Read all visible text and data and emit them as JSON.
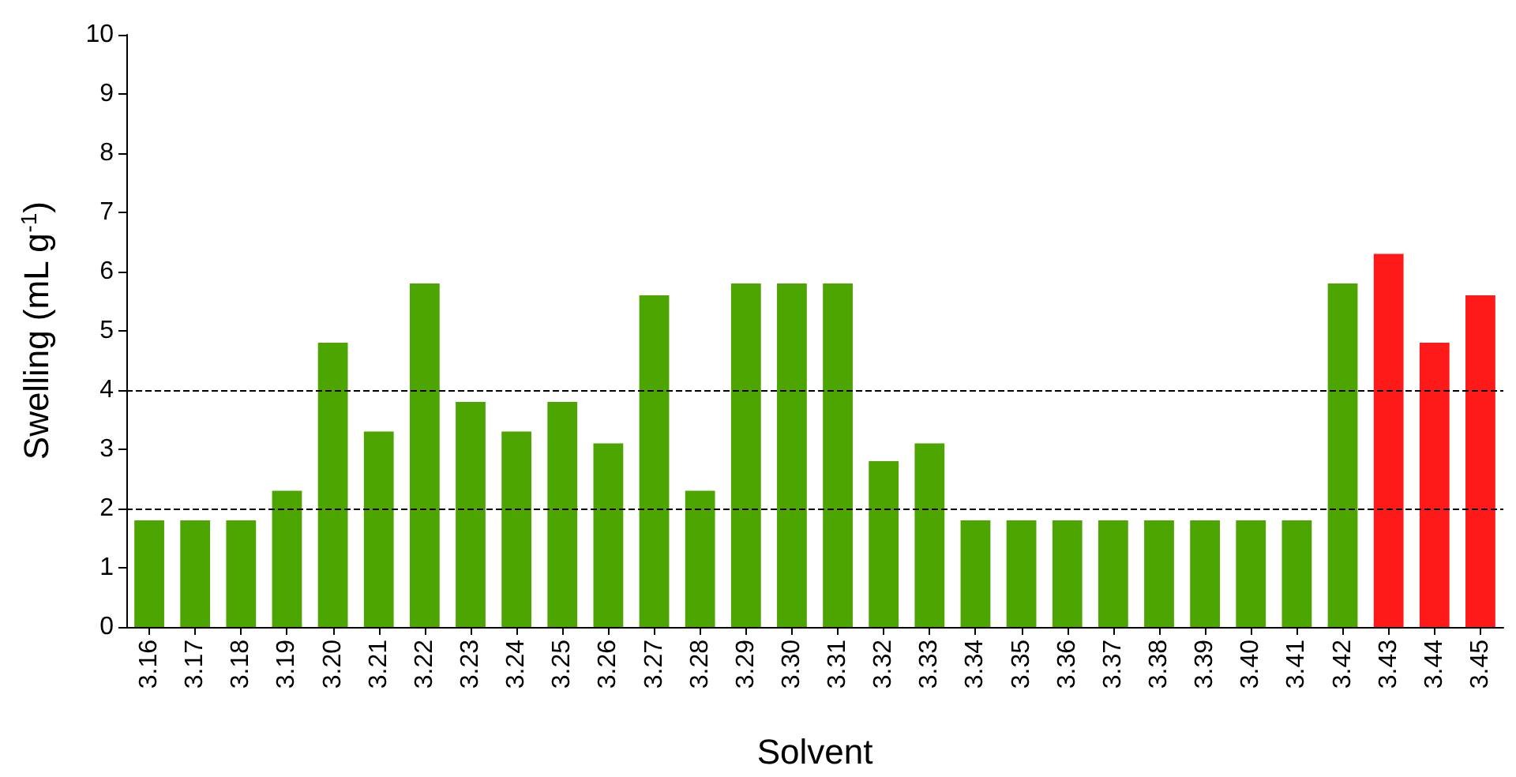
{
  "chart_data": {
    "type": "bar",
    "xlabel": "Solvent",
    "ylabel": "Swelling (mL g$^{-1}$)",
    "categories": [
      "3.16",
      "3.17",
      "3.18",
      "3.19",
      "3.20",
      "3.21",
      "3.22",
      "3.23",
      "3.24",
      "3.25",
      "3.26",
      "3.27",
      "3.28",
      "3.29",
      "3.30",
      "3.31",
      "3.32",
      "3.33",
      "3.34",
      "3.35",
      "3.36",
      "3.37",
      "3.38",
      "3.39",
      "3.40",
      "3.41",
      "3.42",
      "3.43",
      "3.44",
      "3.45"
    ],
    "values": [
      1.8,
      1.8,
      1.8,
      2.3,
      4.8,
      3.3,
      5.8,
      3.8,
      3.3,
      3.8,
      3.1,
      5.6,
      2.3,
      5.8,
      5.8,
      5.8,
      2.8,
      3.1,
      1.8,
      1.8,
      1.8,
      1.8,
      1.8,
      1.8,
      1.8,
      1.8,
      5.8,
      6.3,
      4.8,
      5.6
    ],
    "colors": [
      "#4ca500",
      "#4ca500",
      "#4ca500",
      "#4ca500",
      "#4ca500",
      "#4ca500",
      "#4ca500",
      "#4ca500",
      "#4ca500",
      "#4ca500",
      "#4ca500",
      "#4ca500",
      "#4ca500",
      "#4ca500",
      "#4ca500",
      "#4ca500",
      "#4ca500",
      "#4ca500",
      "#4ca500",
      "#4ca500",
      "#4ca500",
      "#4ca500",
      "#4ca500",
      "#4ca500",
      "#4ca500",
      "#4ca500",
      "#4ca500",
      "#ff1a1a",
      "#ff1a1a",
      "#ff1a1a"
    ],
    "ylim": [
      0,
      10
    ],
    "yticks": [
      0,
      1,
      2,
      3,
      4,
      5,
      6,
      7,
      8,
      9,
      10
    ],
    "grid": false,
    "ref_lines": [
      {
        "axis": "y",
        "value": 2,
        "line_style": "dashed",
        "color": "#000000"
      },
      {
        "axis": "y",
        "value": 4,
        "line_style": "dashed",
        "color": "#000000"
      }
    ]
  }
}
